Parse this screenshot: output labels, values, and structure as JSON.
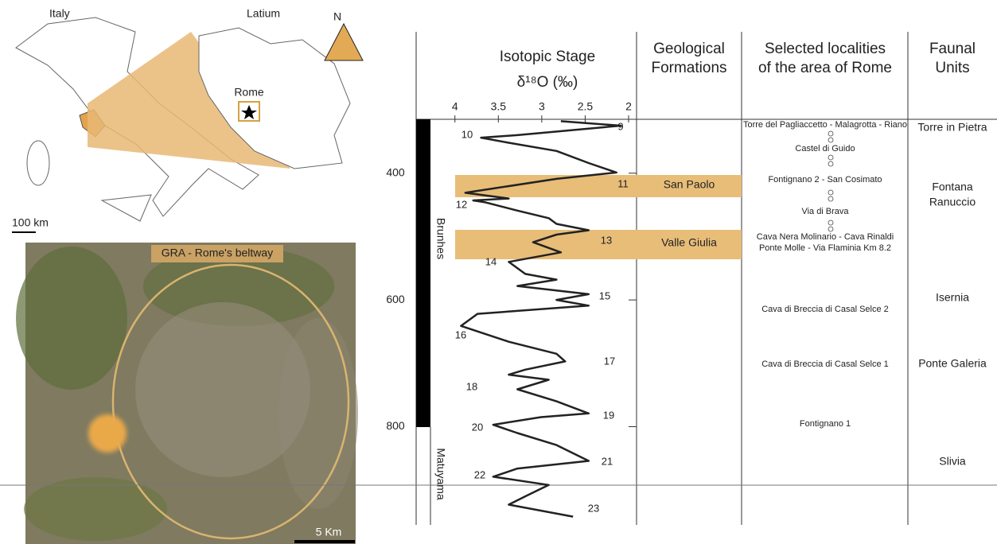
{
  "map": {
    "italy_label": "Italy",
    "latium_label": "Latium",
    "north": "N",
    "rome": "Rome",
    "scale_top": "100 km",
    "beltway": "GRA - Rome's beltway",
    "scale_bottom": "5 Km"
  },
  "chart_data": {
    "type": "line",
    "title": "Isotopic Stage",
    "x_label": "δ¹⁸O (‰)",
    "color": "#222222",
    "xlim": [
      4.3,
      2.0
    ],
    "xticks": [
      4,
      3.5,
      3,
      2.5,
      2
    ],
    "ylim": [
      315,
      955
    ],
    "yticks": [
      400,
      600,
      800
    ],
    "x": [
      2.78,
      2.09,
      3.28,
      3.7,
      3.38,
      2.83,
      2.46,
      2.14,
      2.83,
      3.74,
      3.88,
      3.38,
      3.79,
      3.65,
      3.28,
      2.92,
      2.83,
      2.46,
      2.83,
      3.1,
      2.78,
      3.38,
      3.19,
      2.83,
      3.28,
      2.46,
      2.83,
      2.46,
      3.74,
      3.93,
      3.38,
      2.83,
      2.73,
      3.19,
      3.38,
      2.92,
      3.28,
      2.83,
      2.46,
      3.01,
      3.56,
      3.28,
      2.83,
      2.46,
      3.28,
      3.56,
      2.92,
      3.19,
      3.38,
      2.64
    ],
    "y": [
      318,
      325,
      340,
      344,
      352,
      365,
      384,
      399,
      409,
      428,
      431,
      440,
      443,
      446,
      459,
      471,
      480,
      490,
      497,
      509,
      525,
      540,
      559,
      568,
      578,
      591,
      600,
      609,
      622,
      641,
      666,
      685,
      697,
      710,
      718,
      726,
      741,
      760,
      779,
      785,
      797,
      810,
      829,
      854,
      866,
      879,
      892,
      910,
      923,
      942
    ],
    "stage_labels": [
      "9",
      "10",
      "11",
      "12",
      "13",
      "14",
      "15",
      "16",
      "17",
      "18",
      "19",
      "20",
      "21",
      "22",
      "23"
    ]
  },
  "magnetic": [
    "Brunhes",
    "Matuyama"
  ],
  "headers": {
    "formations": [
      "Geological",
      "Formations"
    ],
    "localities": [
      "Selected localities",
      "of the area of Rome"
    ],
    "faunal": [
      "Faunal",
      "Units"
    ]
  },
  "formations": [
    "San Paolo",
    "Valle Giulia"
  ],
  "localities": [
    "Torre del Pagliaccetto - Malagrotta - Riano",
    "Castel di Guido",
    "Fontignano 2 - San Cosimato",
    "Via di Brava",
    "Cava Nera Molinario -  Cava Rinaldi",
    "Ponte Molle - Via Flaminia Km 8.2",
    "Cava di Breccia di Casal Selce 2",
    "Cava di Breccia di Casal Selce 1",
    "Fontignano 1"
  ],
  "faunal": [
    "Torre in Pietra",
    "Fontana",
    "Ranuccio",
    "Isernia",
    "Ponte Galeria",
    "Slivia"
  ]
}
